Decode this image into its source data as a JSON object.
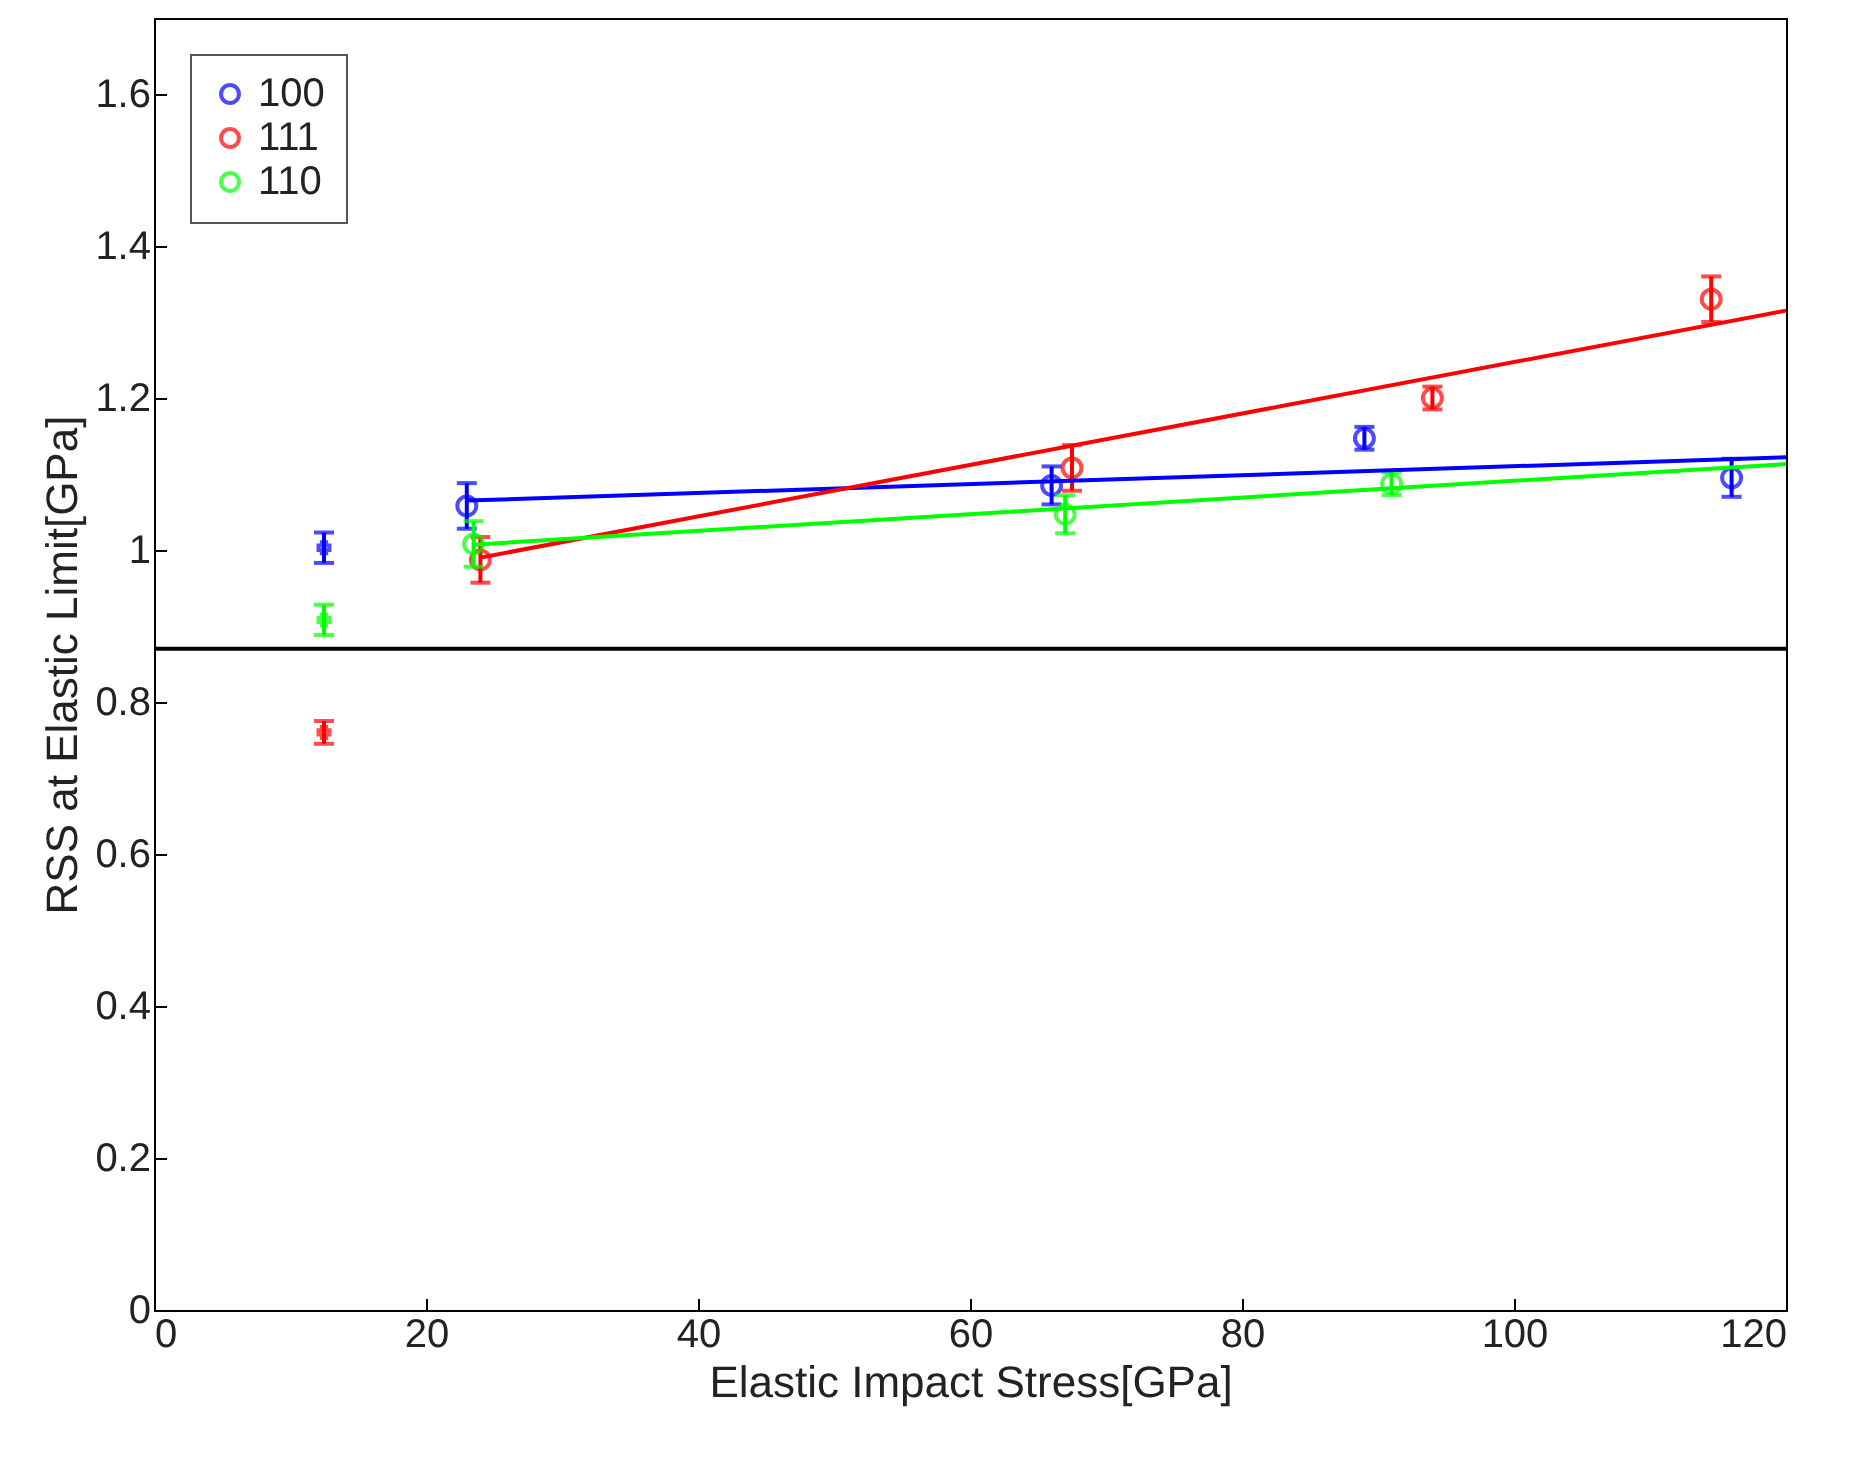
{
  "chart_data": {
    "type": "scatter",
    "xlabel": "Elastic Impact Stress[GPa]",
    "ylabel": "RSS at Elastic Limit[GPa]",
    "xlim": [
      0,
      120
    ],
    "ylim": [
      0,
      1.7
    ],
    "xticks": [
      0,
      20,
      40,
      60,
      80,
      100,
      120
    ],
    "yticks": [
      0,
      0.2,
      0.4,
      0.6,
      0.8,
      1,
      1.2,
      1.4,
      1.6
    ],
    "grid": false,
    "legend": "top left",
    "marker": "circle",
    "series": [
      {
        "name": "100",
        "color": "#0000ff",
        "x": [
          23,
          66,
          89,
          116
        ],
        "values": [
          1.058,
          1.085,
          1.147,
          1.095
        ],
        "errors": [
          0.03,
          0.025,
          0.015,
          0.025
        ]
      },
      {
        "name": "111",
        "color": "#ff0000",
        "x": [
          24,
          67.5,
          94,
          114.5
        ],
        "values": [
          0.987,
          1.108,
          1.2,
          1.33
        ],
        "errors": [
          0.03,
          0.03,
          0.015,
          0.03
        ]
      },
      {
        "name": "110",
        "color": "#00ff00",
        "x": [
          23.5,
          67,
          91
        ],
        "values": [
          1.008,
          1.047,
          1.087
        ],
        "errors": [
          0.03,
          0.025,
          0.015
        ]
      },
      {
        "color": "#0000ff",
        "marker": "cross",
        "x": [
          12.5
        ],
        "values": [
          1.003
        ],
        "errors": [
          0.02
        ]
      },
      {
        "color": "#ff0000",
        "marker": "cross",
        "x": [
          12.5
        ],
        "values": [
          0.76
        ],
        "errors": [
          0.015
        ]
      },
      {
        "color": "#00ff00",
        "marker": "cross",
        "x": [
          12.5
        ],
        "values": [
          0.908
        ],
        "errors": [
          0.02
        ]
      },
      {
        "color": "#0000ff",
        "type": "line",
        "marker": "none",
        "x": [
          23,
          120
        ],
        "values": [
          1.065,
          1.122
        ]
      },
      {
        "color": "#ff0000",
        "type": "line",
        "marker": "none",
        "x": [
          24,
          120
        ],
        "values": [
          0.99,
          1.315
        ]
      },
      {
        "color": "#00ff00",
        "type": "line",
        "marker": "none",
        "x": [
          23.5,
          120
        ],
        "values": [
          1.007,
          1.113
        ]
      }
    ],
    "ref_lines": [
      {
        "axis": "y",
        "value": 0.87,
        "color": "#000000"
      }
    ]
  }
}
